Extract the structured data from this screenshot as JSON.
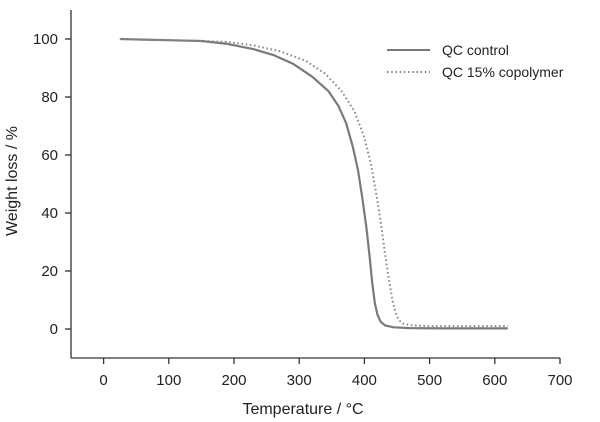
{
  "chart_data": {
    "type": "line",
    "title": "",
    "xlabel": "Temperature / °C",
    "ylabel": "Weight loss / %",
    "xlim": [
      -50,
      700
    ],
    "ylim": [
      -10,
      110
    ],
    "xticks": [
      0,
      100,
      200,
      300,
      400,
      500,
      600,
      700
    ],
    "yticks": [
      0,
      20,
      40,
      60,
      80,
      100
    ],
    "grid": false,
    "legend_position": "top-right",
    "series": [
      {
        "name": "QC control",
        "style": "solid",
        "color": "#7a7a7a",
        "points": [
          [
            25,
            100
          ],
          [
            60,
            99.8
          ],
          [
            100,
            99.6
          ],
          [
            150,
            99.3
          ],
          [
            190,
            98.3
          ],
          [
            230,
            96.5
          ],
          [
            260,
            94.5
          ],
          [
            290,
            91.5
          ],
          [
            320,
            87
          ],
          [
            345,
            82
          ],
          [
            360,
            77
          ],
          [
            372,
            71
          ],
          [
            382,
            63
          ],
          [
            390,
            55
          ],
          [
            397,
            45
          ],
          [
            403,
            35
          ],
          [
            408,
            25
          ],
          [
            412,
            16
          ],
          [
            416,
            9
          ],
          [
            420,
            5
          ],
          [
            425,
            2.5
          ],
          [
            432,
            1.2
          ],
          [
            445,
            0.6
          ],
          [
            470,
            0.3
          ],
          [
            520,
            0.2
          ],
          [
            620,
            0.2
          ]
        ]
      },
      {
        "name": "QC 15% copolymer",
        "style": "dotted",
        "color": "#8a8a8a",
        "points": [
          [
            25,
            100
          ],
          [
            60,
            99.8
          ],
          [
            100,
            99.6
          ],
          [
            150,
            99.3
          ],
          [
            190,
            99
          ],
          [
            230,
            97.8
          ],
          [
            270,
            95.8
          ],
          [
            310,
            92.5
          ],
          [
            340,
            88
          ],
          [
            365,
            82
          ],
          [
            385,
            75
          ],
          [
            400,
            66
          ],
          [
            410,
            57
          ],
          [
            418,
            47
          ],
          [
            425,
            37
          ],
          [
            431,
            27
          ],
          [
            437,
            18
          ],
          [
            443,
            10
          ],
          [
            448,
            5.5
          ],
          [
            453,
            3
          ],
          [
            460,
            1.8
          ],
          [
            475,
            1.2
          ],
          [
            500,
            1
          ],
          [
            560,
            1
          ],
          [
            620,
            1
          ]
        ]
      }
    ]
  }
}
